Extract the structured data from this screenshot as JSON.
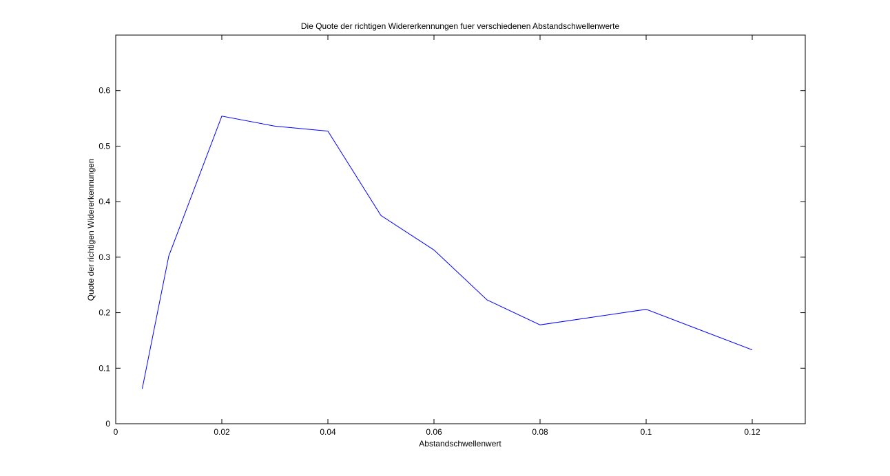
{
  "chart_data": {
    "type": "line",
    "title": "Die Quote der richtigen Widererkennungen fuer verschiedenen Abstandschwellenwerte",
    "xlabel": "Abstandschwellenwert",
    "ylabel": "Quote der richtigen Widererkennungen",
    "xlim": [
      0,
      0.13
    ],
    "ylim": [
      0,
      0.7
    ],
    "xticks": [
      0,
      0.02,
      0.04,
      0.06,
      0.08,
      0.1,
      0.12
    ],
    "xtick_labels": [
      "0",
      "0.02",
      "0.04",
      "0.06",
      "0.08",
      "0.1",
      "0.12"
    ],
    "yticks": [
      0,
      0.1,
      0.2,
      0.3,
      0.4,
      0.5,
      0.6
    ],
    "ytick_labels": [
      "0",
      "0.1",
      "0.2",
      "0.3",
      "0.4",
      "0.5",
      "0.6"
    ],
    "grid": false,
    "series": [
      {
        "color": "#0000ff",
        "x": [
          0.005,
          0.01,
          0.02,
          0.03,
          0.04,
          0.05,
          0.06,
          0.07,
          0.08,
          0.1,
          0.12
        ],
        "y": [
          0.063,
          0.302,
          0.554,
          0.536,
          0.527,
          0.375,
          0.313,
          0.223,
          0.178,
          0.206,
          0.133
        ]
      }
    ]
  }
}
